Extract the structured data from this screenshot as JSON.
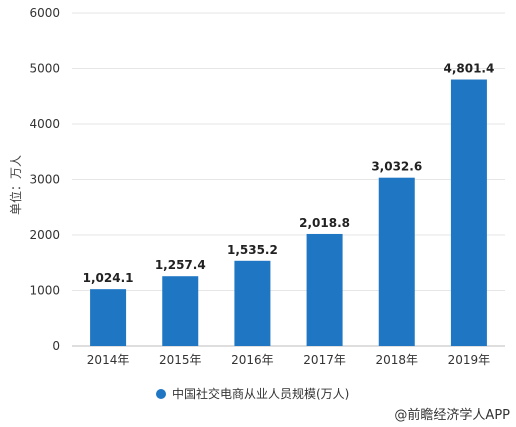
{
  "chart_data": {
    "type": "bar",
    "categories": [
      "2014年",
      "2015年",
      "2016年",
      "2017年",
      "2018年",
      "2019年"
    ],
    "series": [
      {
        "name": "中国社交电商从业人员规模(万人)",
        "values": [
          1024.1,
          1257.4,
          1535.2,
          2018.8,
          3032.6,
          4801.4
        ],
        "labels": [
          "1,024.1",
          "1,257.4",
          "1,535.2",
          "2,018.8",
          "3,032.6",
          "4,801.4"
        ]
      }
    ],
    "ylabel": "单位：万人",
    "ylim": [
      0,
      6000
    ],
    "yticks": [
      "0",
      "1000",
      "2000",
      "3000",
      "4000",
      "5000",
      "6000"
    ],
    "grid": true,
    "legend_position": "bottom",
    "bar_color": "#1f77c4"
  },
  "source": "@前瞻经济学人APP"
}
